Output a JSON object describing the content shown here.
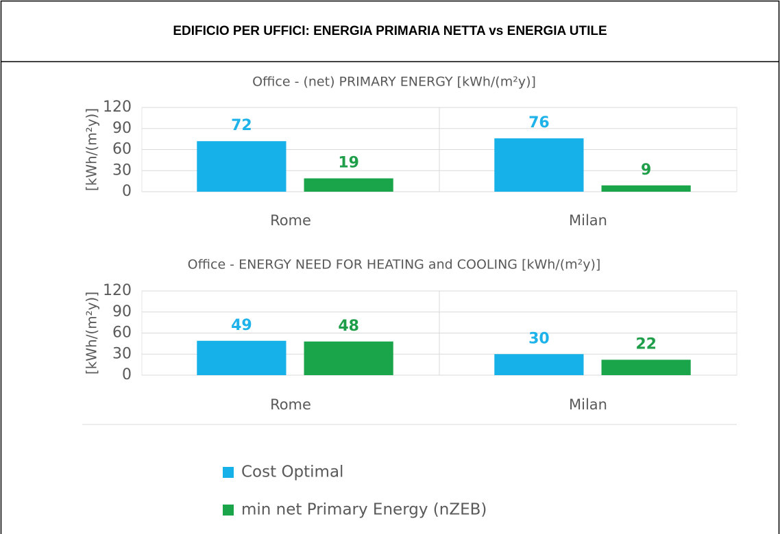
{
  "header": {
    "title": "EDIFICIO PER UFFICI: ENERGIA PRIMARIA NETTA vs ENERGIA UTILE"
  },
  "chart_data": [
    {
      "type": "bar",
      "title": "Office - (net) PRIMARY ENERGY [kWh/(m²y)]",
      "y_label": "[kWh/(m²y)]",
      "categories": [
        "Rome",
        "Milan"
      ],
      "series": [
        {
          "name": "Cost Optimal",
          "color": "#15b1e8",
          "label_color": "#1db3ea",
          "values": [
            72,
            76
          ]
        },
        {
          "name": "min net Primary Energy (nZEB)",
          "color": "#1ba54b",
          "label_color": "#1f9e4a",
          "values": [
            19,
            9
          ]
        }
      ],
      "ylim": [
        0,
        120
      ],
      "yticks": [
        0,
        30,
        60,
        90,
        120
      ],
      "grid": true
    },
    {
      "type": "bar",
      "title": "Office - ENERGY NEED FOR HEATING and COOLING [kWh/(m²y)]",
      "y_label": "[kWh/(m²y)]",
      "categories": [
        "Rome",
        "Milan"
      ],
      "series": [
        {
          "color": "#15b1e8",
          "label_color": "#1db3ea",
          "values": [
            49,
            30
          ]
        },
        {
          "color": "#1ba54b",
          "label_color": "#1f9e4a",
          "values": [
            48,
            22
          ]
        }
      ],
      "ylim": [
        0,
        120
      ],
      "yticks": [
        0,
        30,
        60,
        90,
        120
      ],
      "grid": true
    }
  ]
}
